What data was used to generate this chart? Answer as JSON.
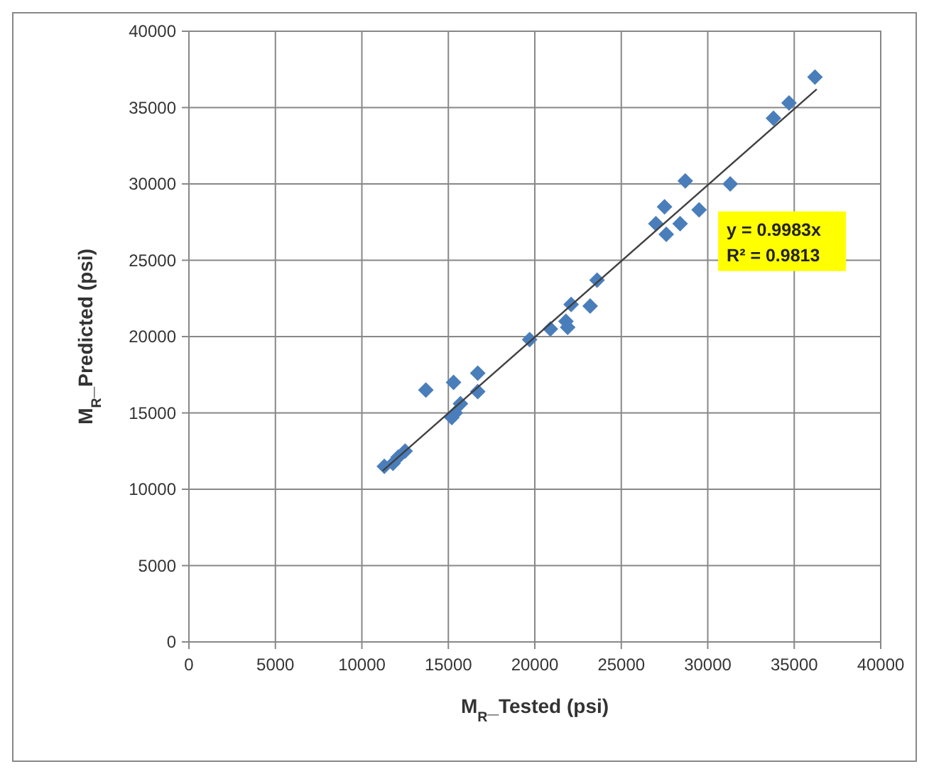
{
  "chart_data": {
    "type": "scatter",
    "xlabel": "M$_{R}$_Tested (psi)",
    "ylabel": "M$_{R}$_Predicted (psi)",
    "xlim": [
      0,
      40000
    ],
    "xticks": [
      0,
      5000,
      10000,
      15000,
      20000,
      25000,
      30000,
      35000,
      40000
    ],
    "ylim": [
      0,
      40000
    ],
    "yticks": [
      0,
      5000,
      10000,
      15000,
      20000,
      25000,
      30000,
      35000,
      40000
    ],
    "grid": true,
    "annotations": [
      "y = 0.9983x",
      "R² = 0.9813"
    ],
    "series": [
      {
        "marker": "diamond",
        "color": "#4a7ebb",
        "x": [
          11300,
          11800,
          12100,
          12500,
          13700,
          15200,
          15400,
          15700,
          15300,
          16700,
          16700,
          19700,
          20900,
          21800,
          21900,
          22100,
          23200,
          23600,
          27000,
          27500,
          27600,
          28400,
          28700,
          29500,
          31300,
          33800,
          34700,
          36200
        ],
        "values": [
          11500,
          11700,
          12100,
          12500,
          16500,
          14700,
          15000,
          15600,
          17000,
          17600,
          16400,
          19800,
          20500,
          21000,
          20600,
          22100,
          22000,
          23700,
          27400,
          28500,
          26700,
          27400,
          30200,
          28300,
          30000,
          34300,
          35300,
          37000
        ]
      },
      {
        "type": "line",
        "color": "#404040",
        "x": [
          11200,
          36300
        ],
        "values": [
          11200,
          36200
        ]
      }
    ]
  }
}
